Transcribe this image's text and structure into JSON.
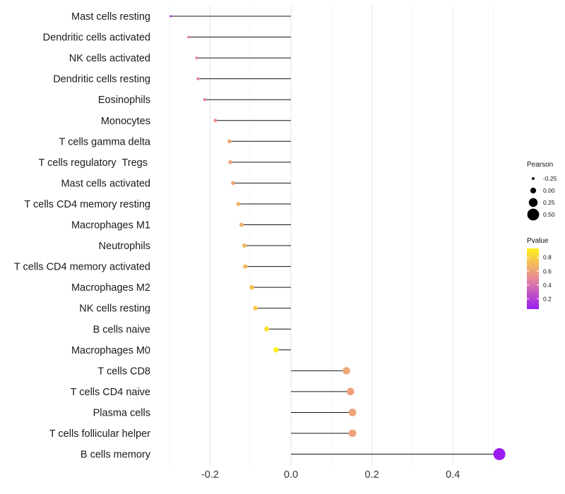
{
  "chart_data": {
    "type": "lollipop",
    "title": "",
    "xlabel": "",
    "ylabel": "",
    "xlim": [
      -0.3,
      0.52
    ],
    "xticks": [
      -0.2,
      0.0,
      0.2,
      0.4
    ],
    "xtick_labels": [
      "-0.2",
      "0.0",
      "0.2",
      "0.4"
    ],
    "grid": true,
    "color_scale": {
      "low": "#9b1cf2",
      "mid": "#e7889c",
      "high": "#fff01a"
    },
    "categories": [
      "Mast cells resting",
      "Dendritic cells activated",
      "NK cells activated",
      "Dendritic cells resting",
      "Eosinophils",
      "Monocytes",
      "T cells gamma delta",
      "T cells regulatory  Tregs ",
      "Mast cells activated",
      "T cells CD4 memory resting",
      "Macrophages M1",
      "Neutrophils",
      "T cells CD4 memory activated",
      "Macrophages M2",
      "NK cells resting",
      "B cells naive",
      "Macrophages M0",
      "T cells CD8",
      "T cells CD4 naive",
      "Plasma cells",
      "T cells follicular helper",
      "B cells memory"
    ],
    "pearson": [
      -0.297,
      -0.253,
      -0.233,
      -0.23,
      -0.213,
      -0.187,
      -0.152,
      -0.15,
      -0.143,
      -0.13,
      -0.122,
      -0.115,
      -0.113,
      -0.097,
      -0.088,
      -0.06,
      -0.037,
      0.137,
      0.147,
      0.152,
      0.152,
      0.515
    ],
    "pvalue": [
      0.12,
      0.45,
      0.47,
      0.47,
      0.47,
      0.52,
      0.6,
      0.6,
      0.6,
      0.66,
      0.66,
      0.7,
      0.7,
      0.74,
      0.76,
      0.87,
      0.93,
      0.62,
      0.6,
      0.6,
      0.6,
      0.05
    ],
    "legend": {
      "size_title": "Pearson",
      "size_breaks": [
        "-0.25",
        "0.00",
        "0.25",
        "0.50"
      ],
      "size_values": [
        -0.25,
        0.0,
        0.25,
        0.5
      ],
      "color_title": "Pvalue",
      "color_breaks": [
        "0.8",
        "0.6",
        "0.4",
        "0.2"
      ],
      "color_values": [
        0.8,
        0.6,
        0.4,
        0.2
      ],
      "color_range": [
        0.05,
        0.93
      ]
    }
  }
}
